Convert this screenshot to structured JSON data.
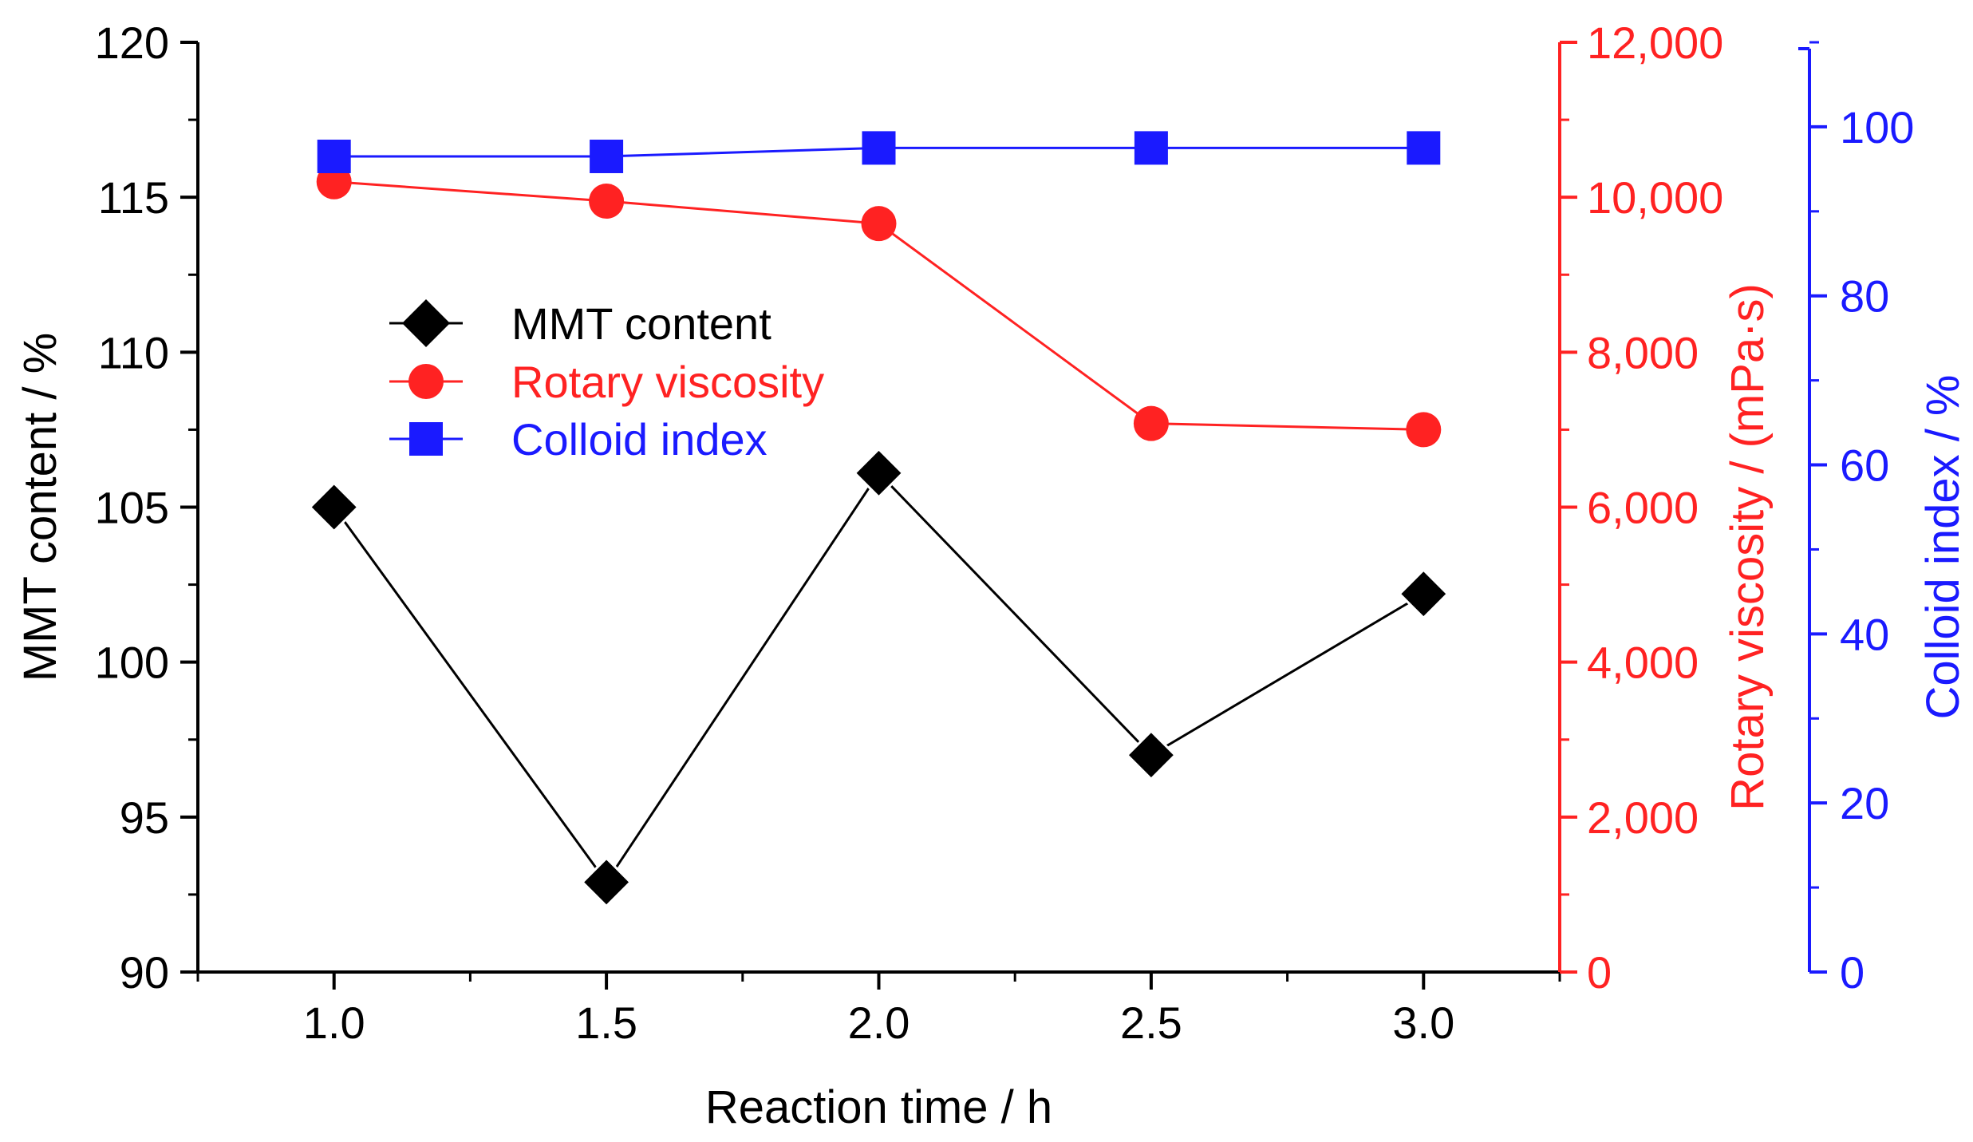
{
  "chart_data": {
    "type": "line",
    "title": "",
    "xlabel": "Reaction time / h",
    "x": [
      1.0,
      1.5,
      2.0,
      2.5,
      3.0
    ],
    "x_tick_labels": [
      "1.0",
      "1.5",
      "2.0",
      "2.5",
      "3.0"
    ],
    "xlim": [
      0.75,
      3.25
    ],
    "grid": false,
    "legend_position": "center-left",
    "axes": {
      "left": {
        "label": "MMT content / %",
        "ylim": [
          90,
          120
        ],
        "ticks": [
          90,
          95,
          100,
          105,
          110,
          115,
          120
        ],
        "tick_labels": [
          "90",
          "95",
          "100",
          "105",
          "110",
          "115",
          "120"
        ],
        "color": "#000000"
      },
      "right1": {
        "label": "Rotary viscosity  / (mPa·s)",
        "ylim": [
          0,
          12000
        ],
        "ticks": [
          0,
          2000,
          4000,
          6000,
          8000,
          10000,
          12000
        ],
        "tick_labels": [
          "0",
          "2,000",
          "4,000",
          "6,000",
          "8,000",
          "10,000",
          "12,000"
        ],
        "color": "#ff2222"
      },
      "right2": {
        "label": "Colloid index  / %",
        "ylim": [
          0,
          110
        ],
        "ticks": [
          0,
          20,
          40,
          60,
          80,
          100
        ],
        "tick_labels": [
          "0",
          "20",
          "40",
          "60",
          "80",
          "100"
        ],
        "color": "#1a1aff"
      }
    },
    "series": [
      {
        "name": "MMT content",
        "axis": "left",
        "marker": "diamond",
        "color": "#000000",
        "values": [
          105.0,
          92.9,
          106.1,
          97.0,
          102.2
        ]
      },
      {
        "name": "Rotary viscosity",
        "axis": "right1",
        "marker": "circle",
        "color": "#ff2222",
        "values": [
          10200,
          9950,
          9660,
          7080,
          7000
        ]
      },
      {
        "name": "Colloid index",
        "axis": "right2",
        "marker": "square",
        "color": "#1a1aff",
        "values": [
          96.5,
          96.5,
          97.5,
          97.5,
          97.5
        ]
      }
    ]
  }
}
